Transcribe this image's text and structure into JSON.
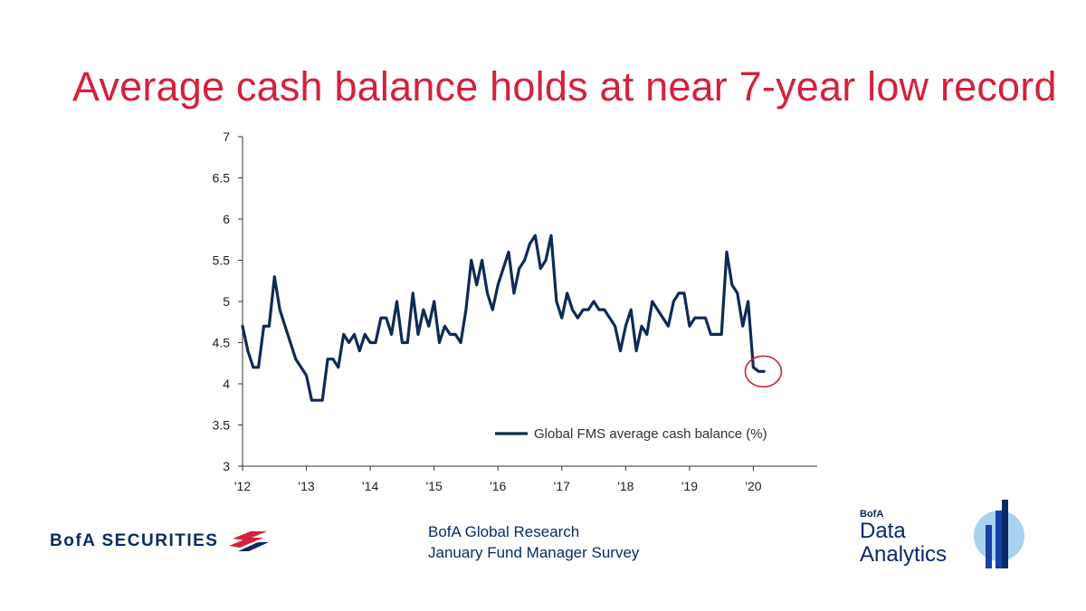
{
  "title": "Average cash balance holds at near 7-year low record",
  "footer": {
    "brand": "BofA SECURITIES",
    "source_line1": "BofA Global Research",
    "source_line2": "January Fund Manager Survey",
    "da_small": "BofA",
    "da_line1": "Data",
    "da_line2": "Analytics"
  },
  "colors": {
    "title": "#d4213d",
    "line": "#0f2a55",
    "highlight": "#d4213d",
    "brand": "#0a2a66"
  },
  "chart_data": {
    "type": "line",
    "title": "",
    "xlabel": "",
    "ylabel": "",
    "ylim": [
      3,
      7
    ],
    "xlim": [
      2012,
      2021
    ],
    "yticks": [
      "3",
      "3.5",
      "4",
      "4.5",
      "5",
      "5.5",
      "6",
      "6.5",
      "7"
    ],
    "xticks": [
      "'12",
      "'13",
      "'14",
      "'15",
      "'16",
      "'17",
      "'18",
      "'19",
      "'20"
    ],
    "legend": "Global FMS average cash balance (%)",
    "legend_position": "bottom-right",
    "highlight": {
      "shape": "circle",
      "x": 2020.0,
      "y": 4.15,
      "note": "latest reading circled"
    },
    "series": [
      {
        "name": "Global FMS average cash balance (%)",
        "values": [
          [
            2012.0,
            4.7
          ],
          [
            2012.0833,
            4.4
          ],
          [
            2012.1667,
            4.2
          ],
          [
            2012.25,
            4.2
          ],
          [
            2012.3333,
            4.7
          ],
          [
            2012.4167,
            4.7
          ],
          [
            2012.5,
            5.3
          ],
          [
            2012.5833,
            4.9
          ],
          [
            2012.6667,
            4.7
          ],
          [
            2012.75,
            4.5
          ],
          [
            2012.8333,
            4.3
          ],
          [
            2012.9167,
            4.2
          ],
          [
            2013.0,
            4.1
          ],
          [
            2013.0833,
            3.8
          ],
          [
            2013.1667,
            3.8
          ],
          [
            2013.25,
            3.8
          ],
          [
            2013.3333,
            4.3
          ],
          [
            2013.4167,
            4.3
          ],
          [
            2013.5,
            4.2
          ],
          [
            2013.5833,
            4.6
          ],
          [
            2013.6667,
            4.5
          ],
          [
            2013.75,
            4.6
          ],
          [
            2013.8333,
            4.4
          ],
          [
            2013.9167,
            4.6
          ],
          [
            2014.0,
            4.5
          ],
          [
            2014.0833,
            4.5
          ],
          [
            2014.1667,
            4.8
          ],
          [
            2014.25,
            4.8
          ],
          [
            2014.3333,
            4.6
          ],
          [
            2014.4167,
            5.0
          ],
          [
            2014.5,
            4.5
          ],
          [
            2014.5833,
            4.5
          ],
          [
            2014.6667,
            5.1
          ],
          [
            2014.75,
            4.6
          ],
          [
            2014.8333,
            4.9
          ],
          [
            2014.9167,
            4.7
          ],
          [
            2015.0,
            5.0
          ],
          [
            2015.0833,
            4.5
          ],
          [
            2015.1667,
            4.7
          ],
          [
            2015.25,
            4.6
          ],
          [
            2015.3333,
            4.6
          ],
          [
            2015.4167,
            4.5
          ],
          [
            2015.5,
            4.9
          ],
          [
            2015.5833,
            5.5
          ],
          [
            2015.6667,
            5.2
          ],
          [
            2015.75,
            5.5
          ],
          [
            2015.8333,
            5.1
          ],
          [
            2015.9167,
            4.9
          ],
          [
            2016.0,
            5.2
          ],
          [
            2016.0833,
            5.4
          ],
          [
            2016.1667,
            5.6
          ],
          [
            2016.25,
            5.1
          ],
          [
            2016.3333,
            5.4
          ],
          [
            2016.4167,
            5.5
          ],
          [
            2016.5,
            5.7
          ],
          [
            2016.5833,
            5.8
          ],
          [
            2016.6667,
            5.4
          ],
          [
            2016.75,
            5.5
          ],
          [
            2016.8333,
            5.8
          ],
          [
            2016.9167,
            5.0
          ],
          [
            2017.0,
            4.8
          ],
          [
            2017.0833,
            5.1
          ],
          [
            2017.1667,
            4.9
          ],
          [
            2017.25,
            4.8
          ],
          [
            2017.3333,
            4.9
          ],
          [
            2017.4167,
            4.9
          ],
          [
            2017.5,
            5.0
          ],
          [
            2017.5833,
            4.9
          ],
          [
            2017.6667,
            4.9
          ],
          [
            2017.75,
            4.8
          ],
          [
            2017.8333,
            4.7
          ],
          [
            2017.9167,
            4.4
          ],
          [
            2018.0,
            4.7
          ],
          [
            2018.0833,
            4.9
          ],
          [
            2018.1667,
            4.4
          ],
          [
            2018.25,
            4.7
          ],
          [
            2018.3333,
            4.6
          ],
          [
            2018.4167,
            5.0
          ],
          [
            2018.5,
            4.9
          ],
          [
            2018.5833,
            4.8
          ],
          [
            2018.6667,
            4.7
          ],
          [
            2018.75,
            5.0
          ],
          [
            2018.8333,
            5.1
          ],
          [
            2018.9167,
            5.1
          ],
          [
            2019.0,
            4.7
          ],
          [
            2019.0833,
            4.8
          ],
          [
            2019.1667,
            4.8
          ],
          [
            2019.25,
            4.8
          ],
          [
            2019.3333,
            4.6
          ],
          [
            2019.4167,
            4.6
          ],
          [
            2019.5,
            4.6
          ],
          [
            2019.5833,
            5.6
          ],
          [
            2019.6667,
            5.2
          ],
          [
            2019.75,
            5.1
          ],
          [
            2019.8333,
            4.7
          ],
          [
            2019.9167,
            5.0
          ],
          [
            2020.0,
            4.2
          ],
          [
            2020.0833,
            4.15
          ],
          [
            2020.1667,
            4.15
          ]
        ]
      }
    ]
  }
}
